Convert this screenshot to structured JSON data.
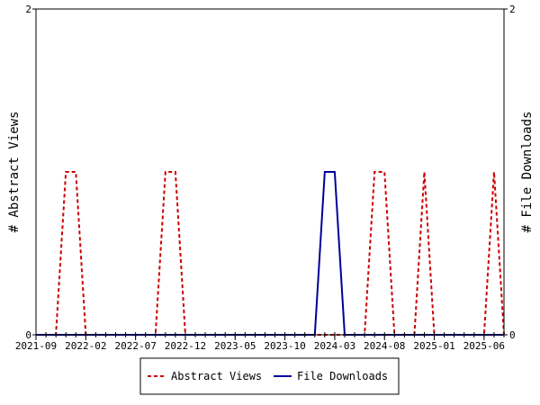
{
  "chart_data": {
    "type": "line",
    "title": "",
    "x_tick_labels": [
      "2021-09",
      "2022-02",
      "2022-07",
      "2022-12",
      "2023-05",
      "2023-10",
      "2024-03",
      "2024-08",
      "2025-01",
      "2025-06"
    ],
    "x_tick_dates": [
      "2021-09",
      "2022-02",
      "2022-07",
      "2022-12",
      "2023-05",
      "2023-10",
      "2024-03",
      "2024-08",
      "2025-01",
      "2025-06"
    ],
    "x_range": [
      "2021-09",
      "2025-08"
    ],
    "y_left": {
      "label": "# Abstract Views",
      "ylim": [
        0,
        2
      ],
      "ticks": [
        "0",
        "2"
      ]
    },
    "y_right": {
      "label": "# File Downloads",
      "ylim": [
        0,
        2
      ],
      "ticks": [
        "0",
        "2"
      ]
    },
    "grid": false,
    "legend_placement": "bottom",
    "series": [
      {
        "name": "Abstract Views",
        "axis": "left",
        "color": "#cc0000",
        "dash": "dashed",
        "x": [
          "2021-09",
          "2021-10",
          "2021-11",
          "2021-12",
          "2022-01",
          "2022-02",
          "2022-03",
          "2022-04",
          "2022-05",
          "2022-06",
          "2022-07",
          "2022-08",
          "2022-09",
          "2022-10",
          "2022-11",
          "2022-12",
          "2023-01",
          "2023-02",
          "2023-03",
          "2023-04",
          "2023-05",
          "2023-06",
          "2023-07",
          "2023-08",
          "2023-09",
          "2023-10",
          "2023-11",
          "2023-12",
          "2024-01",
          "2024-02",
          "2024-03",
          "2024-04",
          "2024-05",
          "2024-06",
          "2024-07",
          "2024-08",
          "2024-09",
          "2024-10",
          "2024-11",
          "2024-12",
          "2025-01",
          "2025-02",
          "2025-03",
          "2025-04",
          "2025-05",
          "2025-06",
          "2025-07",
          "2025-08"
        ],
        "values": [
          0,
          0,
          0,
          1,
          1,
          0,
          0,
          0,
          0,
          0,
          0,
          0,
          0,
          1,
          1,
          0,
          0,
          0,
          0,
          0,
          0,
          0,
          0,
          0,
          0,
          0,
          0,
          0,
          0,
          0,
          0,
          0,
          0,
          0,
          1,
          1,
          0,
          0,
          0,
          1,
          0,
          0,
          0,
          0,
          0,
          0,
          1,
          0
        ]
      },
      {
        "name": "File Downloads",
        "axis": "right",
        "color": "#000099",
        "dash": "solid",
        "x": [
          "2021-09",
          "2021-10",
          "2021-11",
          "2021-12",
          "2022-01",
          "2022-02",
          "2022-03",
          "2022-04",
          "2022-05",
          "2022-06",
          "2022-07",
          "2022-08",
          "2022-09",
          "2022-10",
          "2022-11",
          "2022-12",
          "2023-01",
          "2023-02",
          "2023-03",
          "2023-04",
          "2023-05",
          "2023-06",
          "2023-07",
          "2023-08",
          "2023-09",
          "2023-10",
          "2023-11",
          "2023-12",
          "2024-01",
          "2024-02",
          "2024-03",
          "2024-04",
          "2024-05",
          "2024-06",
          "2024-07",
          "2024-08",
          "2024-09",
          "2024-10",
          "2024-11",
          "2024-12",
          "2025-01",
          "2025-02",
          "2025-03",
          "2025-04",
          "2025-05",
          "2025-06",
          "2025-07",
          "2025-08"
        ],
        "values": [
          0,
          0,
          0,
          0,
          0,
          0,
          0,
          0,
          0,
          0,
          0,
          0,
          0,
          0,
          0,
          0,
          0,
          0,
          0,
          0,
          0,
          0,
          0,
          0,
          0,
          0,
          0,
          0,
          0,
          1,
          1,
          0,
          0,
          0,
          0,
          0,
          0,
          0,
          0,
          0,
          0,
          0,
          0,
          0,
          0,
          0,
          0,
          0
        ]
      }
    ]
  }
}
